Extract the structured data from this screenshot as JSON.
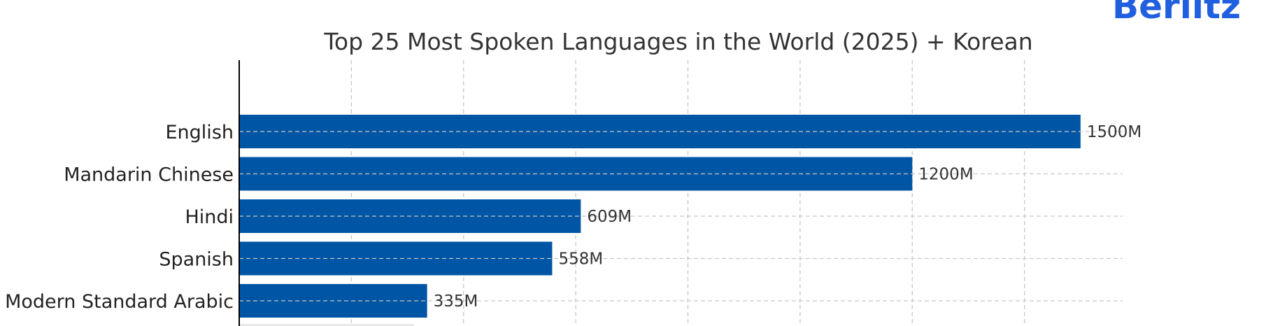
{
  "logo": {
    "text": "Berlitz"
  },
  "colors": {
    "bar": "#0055a4",
    "logo": "#1f5fe0",
    "grid": "#c8c8c8",
    "axis": "#000000"
  },
  "chart_data": {
    "type": "bar",
    "orientation": "horizontal",
    "title": "Top 25 Most Spoken Languages in the World (2025) + Korean",
    "xlabel": "",
    "ylabel": "",
    "categories": [
      "English",
      "Mandarin Chinese",
      "Hindi",
      "Spanish",
      "Modern Standard Arabic"
    ],
    "values": [
      1500,
      1200,
      609,
      558,
      335
    ],
    "value_labels": [
      "1500M",
      "1200M",
      "609M",
      "558M",
      "335M"
    ],
    "xlim": [
      0,
      1575
    ],
    "grid": true,
    "grid_style": "dashed"
  }
}
